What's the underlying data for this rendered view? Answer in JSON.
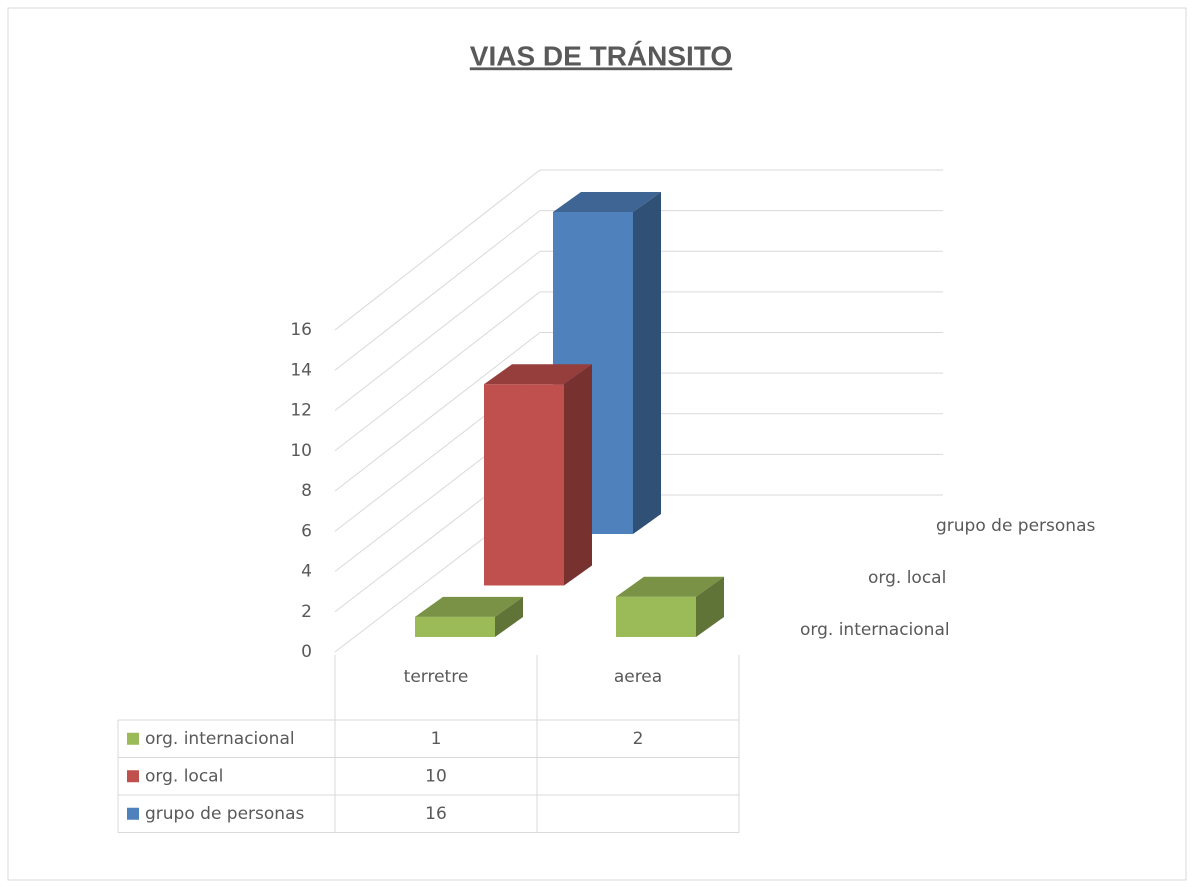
{
  "chart_data": {
    "type": "bar",
    "title": "VIAS DE TRÁNSITO",
    "categories": [
      "terretre",
      "aerea"
    ],
    "series": [
      {
        "name": "org. internacional",
        "color": "#9bbb59",
        "values": [
          1,
          2
        ]
      },
      {
        "name": "org. local",
        "color": "#c0504d",
        "values": [
          10,
          null
        ]
      },
      {
        "name": "grupo de personas",
        "color": "#4f81bd",
        "values": [
          16,
          null
        ]
      }
    ],
    "ylim": [
      0,
      16
    ],
    "yticks": [
      0,
      2,
      4,
      6,
      8,
      10,
      12,
      14,
      16
    ],
    "grid": true
  }
}
